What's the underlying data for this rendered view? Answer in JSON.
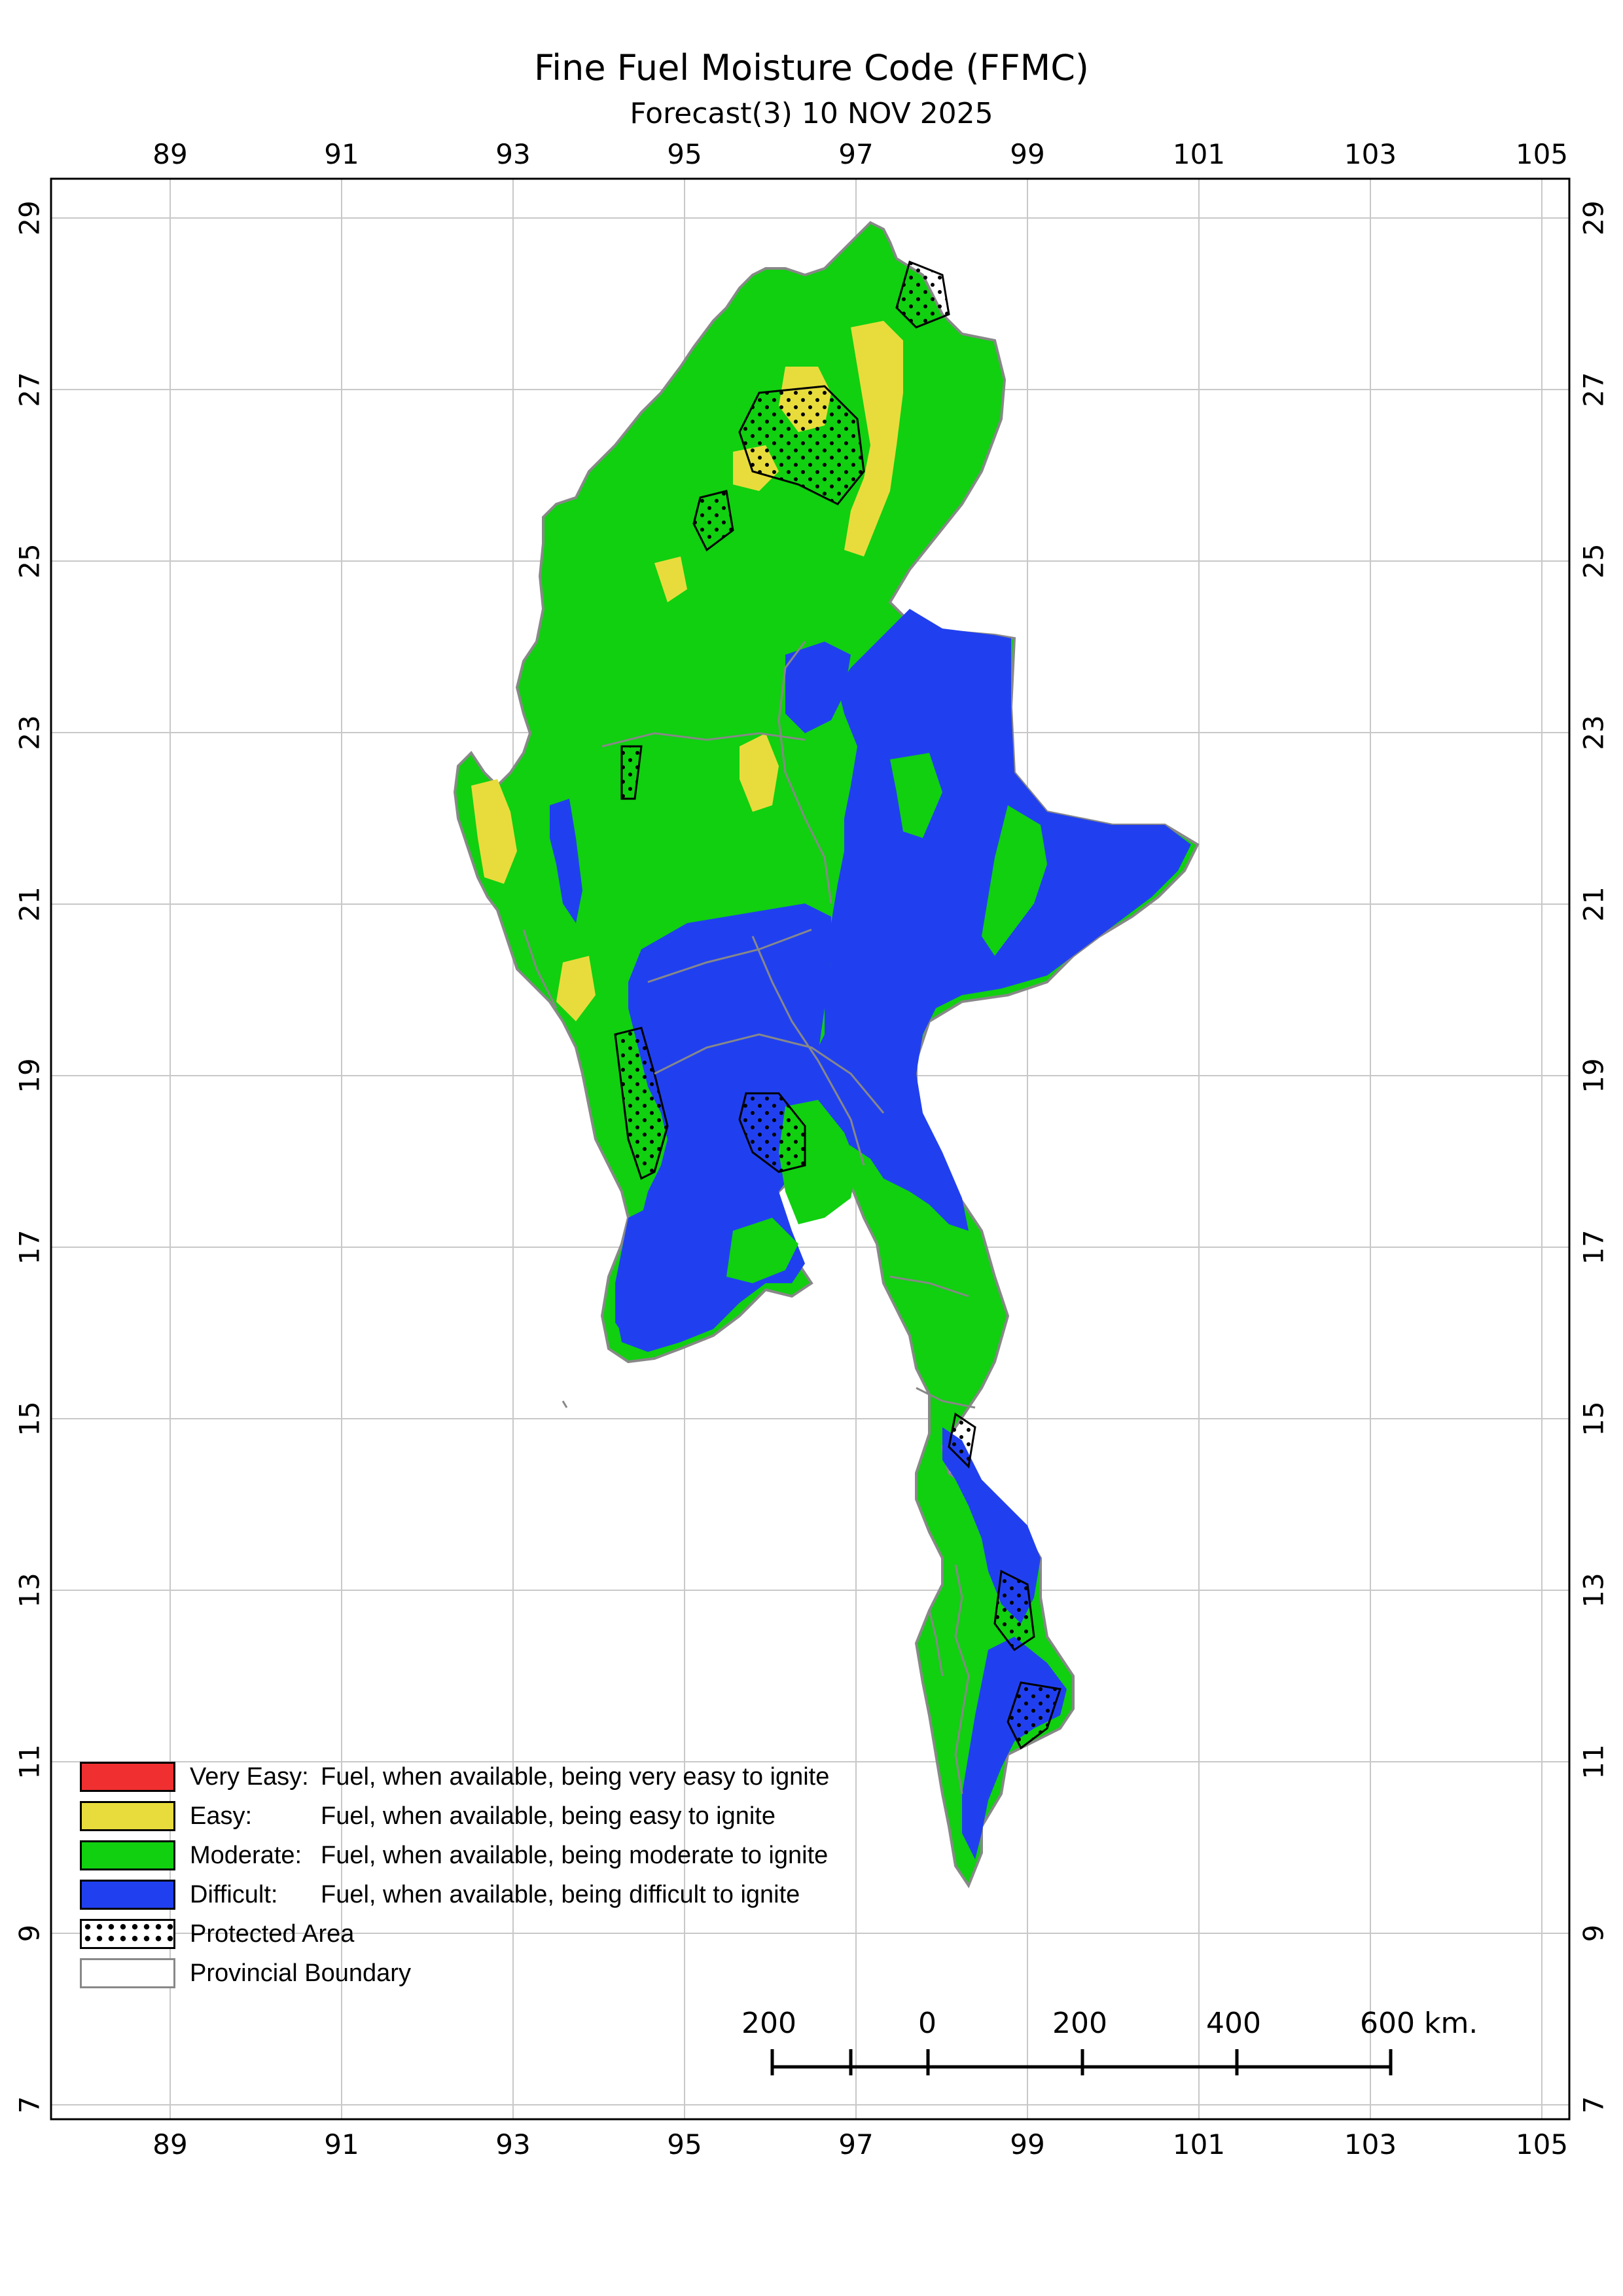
{
  "map": {
    "title": "Fine Fuel Moisture Code (FFMC)",
    "subtitle": "Forecast(3) 10 NOV 2025",
    "lon_ticks": [
      "89",
      "91",
      "93",
      "95",
      "97",
      "99",
      "101",
      "103",
      "105"
    ],
    "lat_ticks": [
      "29",
      "27",
      "25",
      "23",
      "21",
      "19",
      "17",
      "15",
      "13",
      "11",
      "9",
      "7"
    ]
  },
  "legend": [
    {
      "name": "Very Easy:",
      "desc": "Fuel, when available, being very easy to ignite",
      "color": "#f03030"
    },
    {
      "name": "Easy:",
      "desc": "Fuel, when available, being easy to ignite",
      "color": "#e8dc3c"
    },
    {
      "name": "Moderate:",
      "desc": "Fuel, when available, being moderate to ignite",
      "color": "#10d010"
    },
    {
      "name": "Difficult:",
      "desc": "Fuel, when available, being difficult to ignite",
      "color": "#2040f0"
    },
    {
      "name": "Protected Area",
      "desc": "",
      "color": "dotted"
    },
    {
      "name": "Provincial Boundary",
      "desc": "",
      "color": "#888888"
    }
  ],
  "scalebar": {
    "labels": [
      "200",
      "0",
      "200",
      "400",
      "600 km."
    ]
  }
}
